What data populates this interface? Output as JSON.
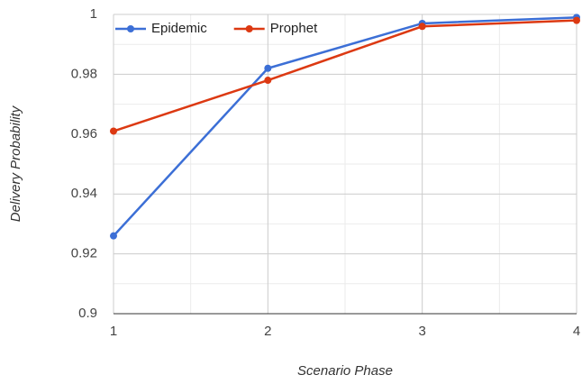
{
  "chart_data": {
    "type": "line",
    "x_label": "Scenario Phase",
    "y_label": "Delivery Probability",
    "x": [
      1,
      2,
      3,
      4
    ],
    "series": [
      {
        "name": "Epidemic",
        "color": "#3c6fd6",
        "values": [
          0.926,
          0.982,
          0.997,
          0.999
        ]
      },
      {
        "name": "Prophet",
        "color": "#dc3912",
        "values": [
          0.961,
          0.978,
          0.996,
          0.998
        ]
      }
    ],
    "xlim": [
      1,
      4
    ],
    "xticks": [
      1,
      2,
      3,
      4
    ],
    "x_minor_gridlines": [
      1.5,
      2.5,
      3.5
    ],
    "ylim": [
      0.9,
      1
    ],
    "yticks": [
      0.9,
      0.92,
      0.94,
      0.96,
      0.98,
      1
    ],
    "y_minor_gridlines": [
      0.91,
      0.93,
      0.95,
      0.97,
      0.99
    ],
    "grid": true,
    "legend": "top-left"
  }
}
